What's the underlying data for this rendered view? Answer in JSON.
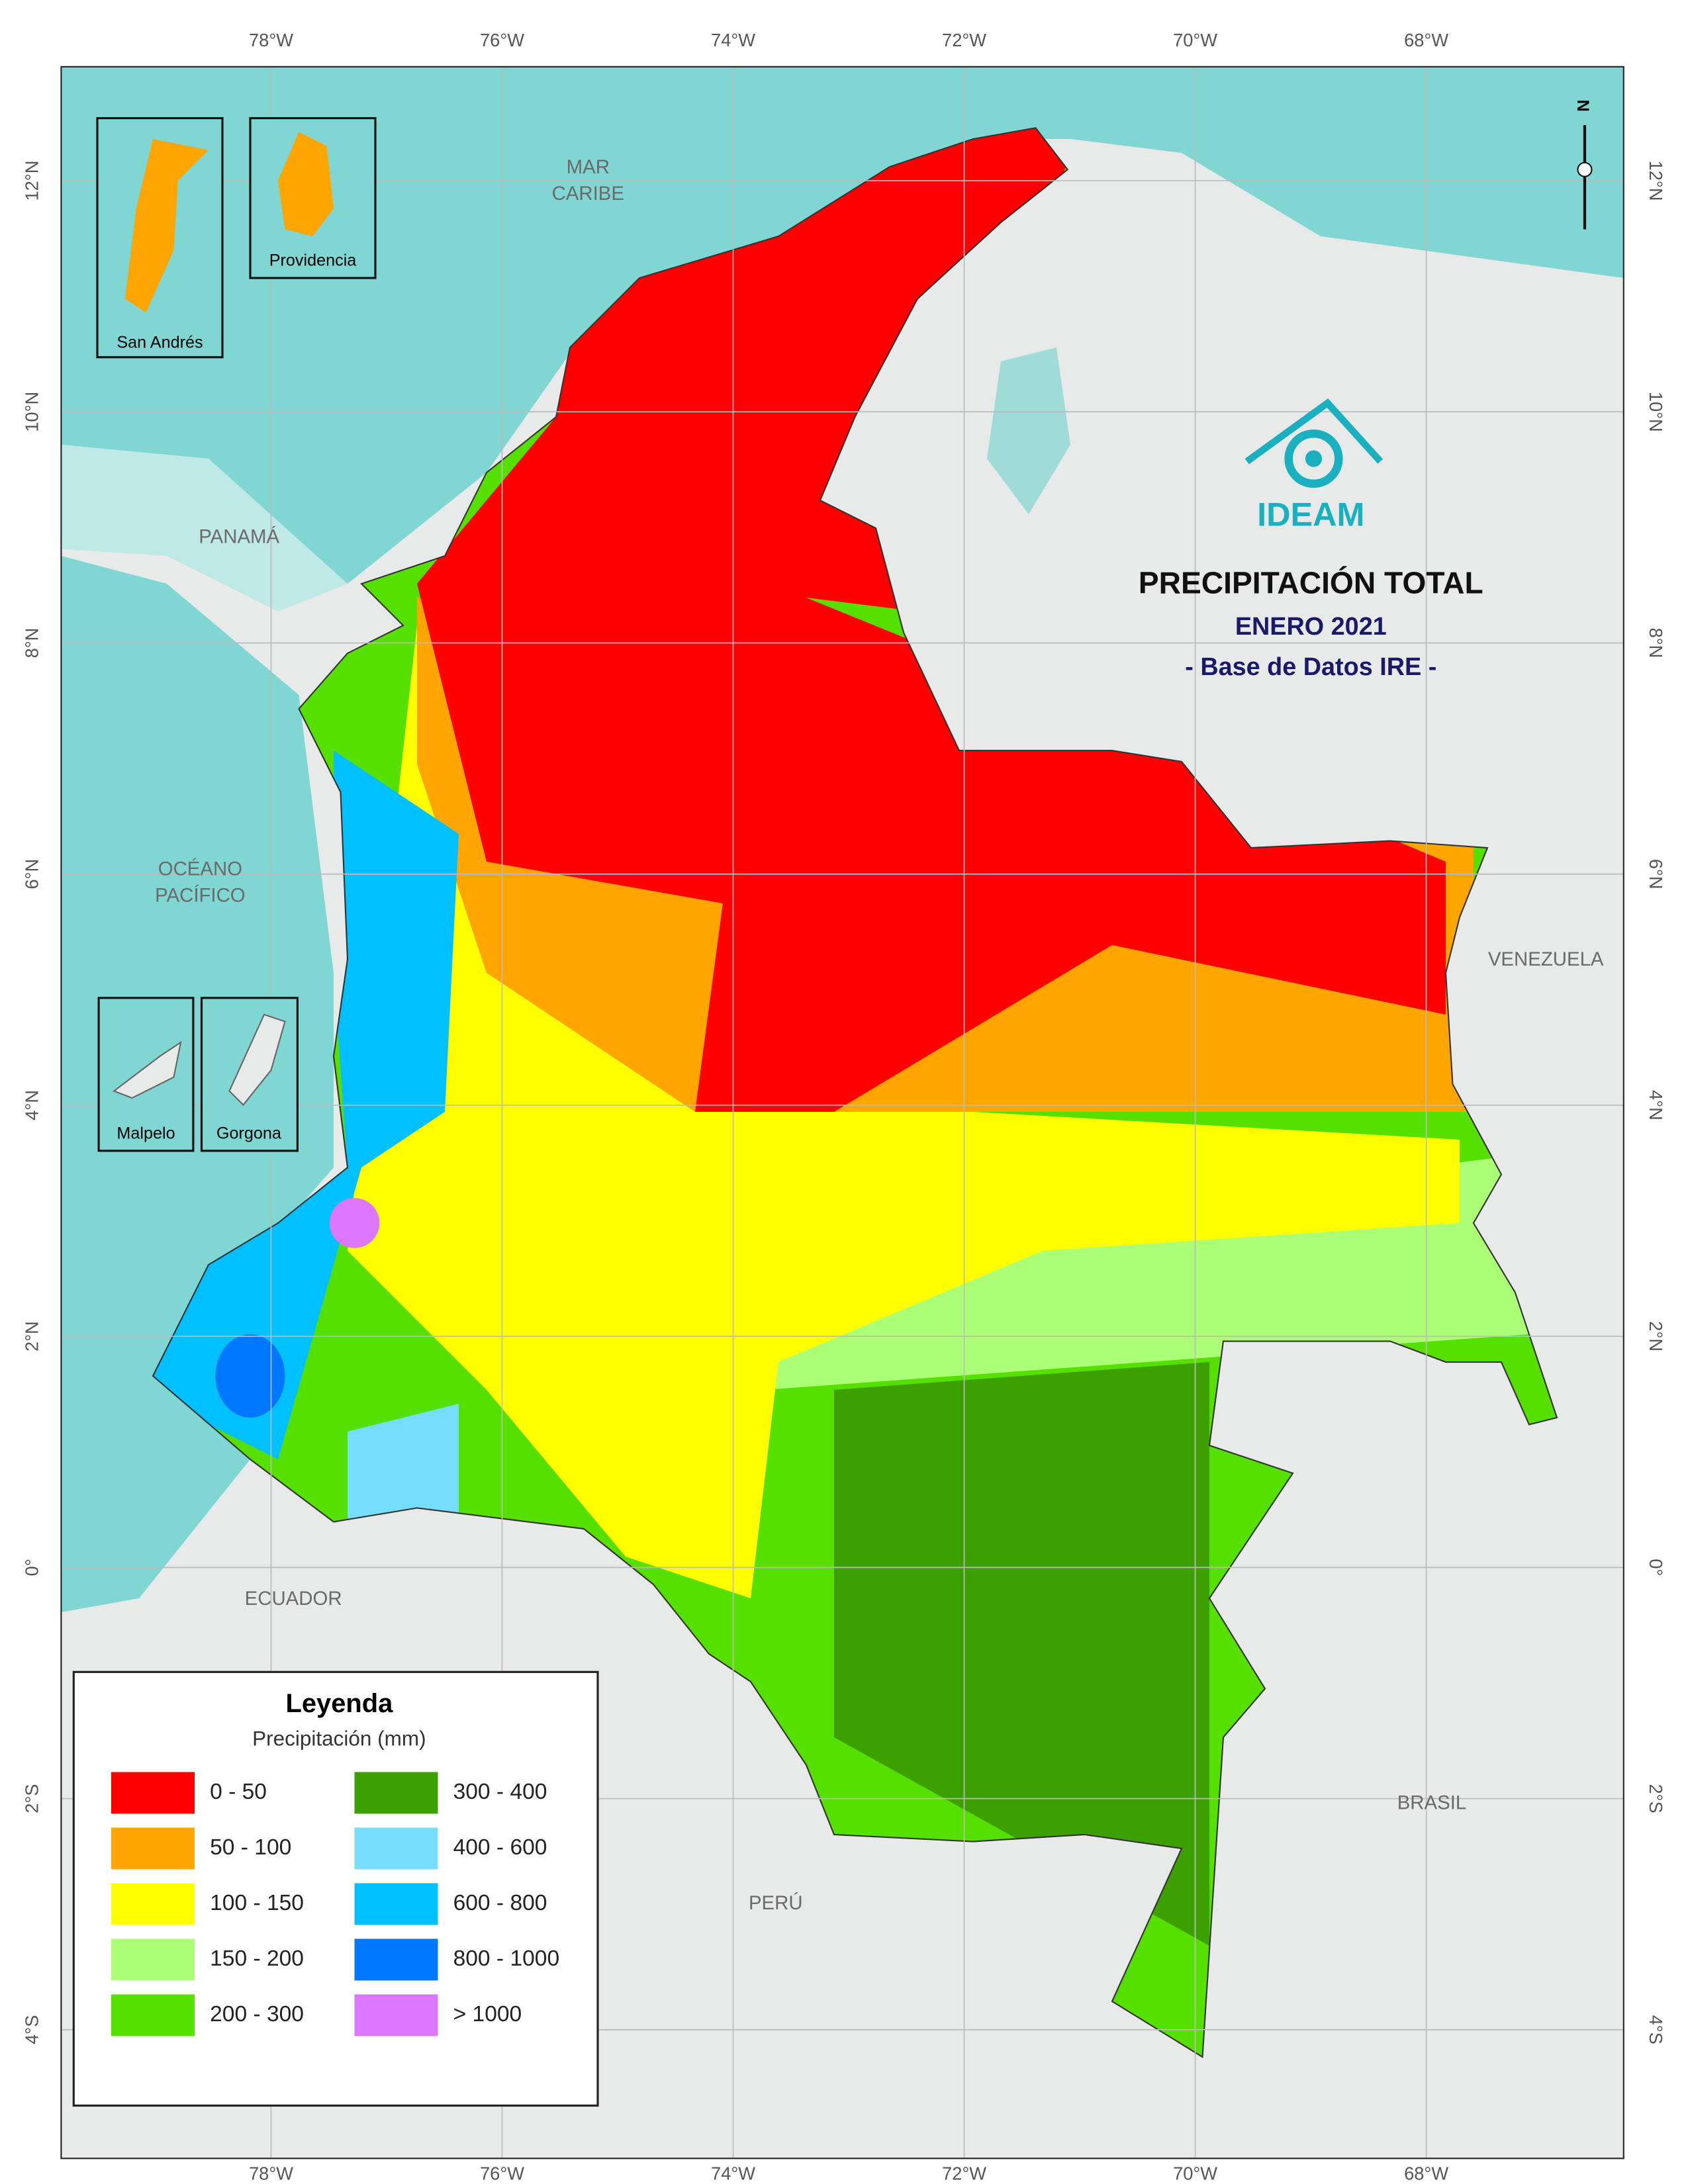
{
  "map": {
    "title": "PRECIPITACIÓN TOTAL",
    "subtitle": "ENERO 2021",
    "source": "- Base de Datos IRE -",
    "logo": "IDEAM",
    "north_arrow": "N",
    "graticule": {
      "longitudes": [
        "78°W",
        "76°W",
        "74°W",
        "72°W",
        "70°W",
        "68°W"
      ],
      "latitudes": [
        "12°N",
        "10°N",
        "8°N",
        "6°N",
        "4°N",
        "2°N",
        "0°",
        "2°S",
        "4°S"
      ]
    },
    "places": {
      "sea_line1": "MAR",
      "sea_line2": "CARIBE",
      "ocean_line1": "OCÉANO",
      "ocean_line2": "PACÍFICO",
      "panama": "PANAMÁ",
      "venezuela": "VENEZUELA",
      "ecuador": "ECUADOR",
      "brasil": "BRASIL",
      "peru": "PERÚ"
    },
    "insets": [
      "San Andrés",
      "Providencia",
      "Malpelo",
      "Gorgona"
    ],
    "legend": {
      "title": "Leyenda",
      "subtitle": "Precipitación (mm)",
      "items": [
        {
          "label": "0 - 50",
          "color": "#ff0000"
        },
        {
          "label": "50 - 100",
          "color": "#ffa500"
        },
        {
          "label": "100 - 150",
          "color": "#ffff00"
        },
        {
          "label": "150 - 200",
          "color": "#aaff77"
        },
        {
          "label": "200 - 300",
          "color": "#55e000"
        },
        {
          "label": "300 - 400",
          "color": "#3ca000"
        },
        {
          "label": "400 - 600",
          "color": "#77ddff"
        },
        {
          "label": "600 - 800",
          "color": "#00c0ff"
        },
        {
          "label": "800 - 1000",
          "color": "#0077ff"
        },
        {
          "label": "> 1000",
          "color": "#dd77ff"
        }
      ]
    }
  }
}
